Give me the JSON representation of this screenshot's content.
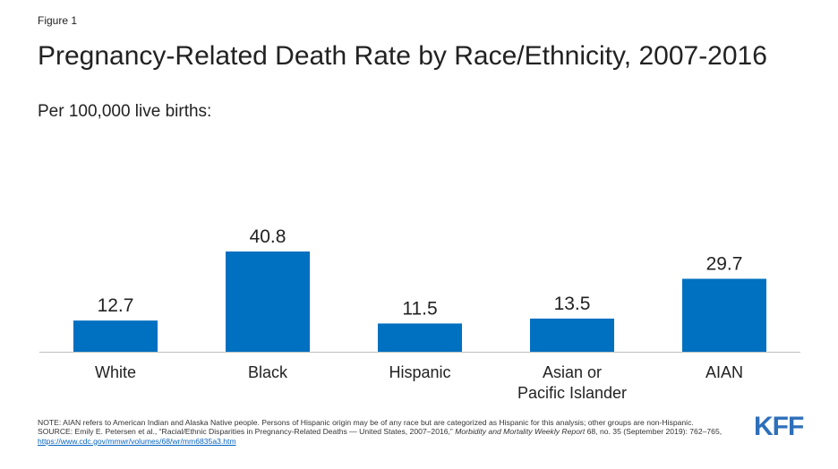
{
  "figure_label": "Figure 1",
  "chart_data": {
    "type": "bar",
    "title": "Pregnancy-Related Death Rate by Race/Ethnicity, 2007-2016",
    "subtitle": "Per 100,000 live births:",
    "categories": [
      "White",
      "Black",
      "Hispanic",
      "Asian or\nPacific Islander",
      "AIAN"
    ],
    "values": [
      12.7,
      40.8,
      11.5,
      13.5,
      29.7
    ],
    "value_labels": [
      "12.7",
      "40.8",
      "11.5",
      "13.5",
      "29.7"
    ],
    "bar_color": "#0070c0",
    "ylim": [
      0,
      40.8
    ],
    "grid": false,
    "legend": "none"
  },
  "notes": {
    "note": "NOTE: AIAN  refers to American Indian and Alaska Native people. Persons of Hispanic origin may be of any race but are categorized as Hispanic for this analysis; other groups are non-Hispanic.",
    "source_prefix": "SOURCE:  Emily E. Petersen et al., “Racial/Ethnic Disparities in Pregnancy-Related Deaths — United States, 2007–2016,” ",
    "source_journal": "Morbidity and Mortality Weekly Report",
    "source_suffix": " 68, no. 35 (September 2019): 762–765, ",
    "source_url": "https://www.cdc.gov/mmwr/volumes/68/wr/mm6835a3.htm"
  },
  "logo": "KFF"
}
